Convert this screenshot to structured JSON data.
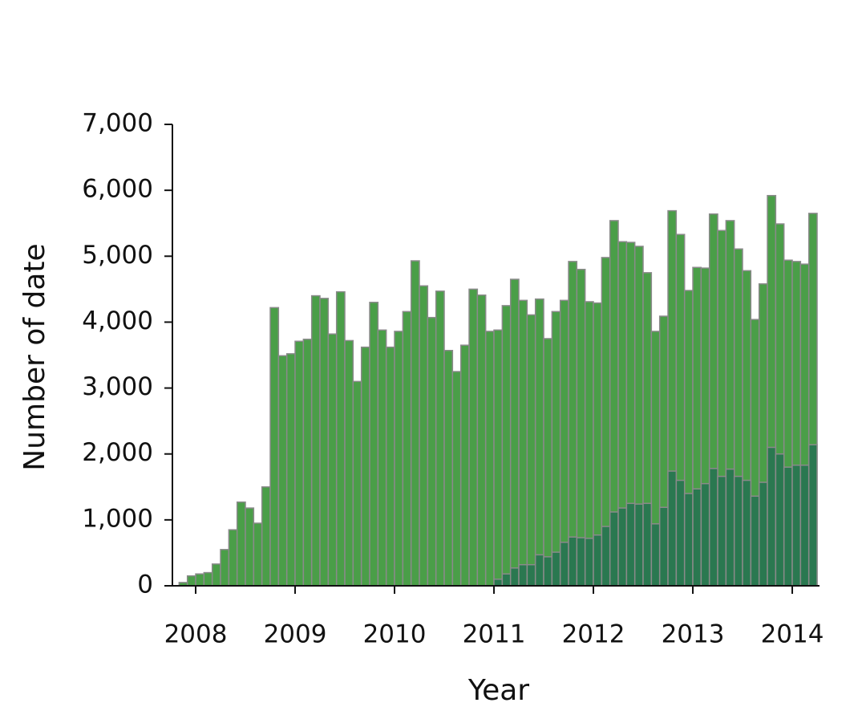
{
  "chart_data": {
    "type": "histogram",
    "xlabel": "Year",
    "ylabel": "Number of date",
    "bins": [
      2007.8333,
      2007.9167,
      2008,
      2008.0833,
      2008.1667,
      2008.25,
      2008.3333,
      2008.4167,
      2008.5,
      2008.5833,
      2008.6667,
      2008.75,
      2008.8333,
      2008.9167,
      2009,
      2009.0833,
      2009.1667,
      2009.25,
      2009.3333,
      2009.4167,
      2009.5,
      2009.5833,
      2009.6667,
      2009.75,
      2009.8333,
      2009.9167,
      2010,
      2010.0833,
      2010.1667,
      2010.25,
      2010.3333,
      2010.4167,
      2010.5,
      2010.5833,
      2010.6667,
      2010.75,
      2010.8333,
      2010.9167,
      2011,
      2011.0833,
      2011.1667,
      2011.25,
      2011.3333,
      2011.4167,
      2011.5,
      2011.5833,
      2011.6667,
      2011.75,
      2011.8333,
      2011.9167,
      2012,
      2012.0833,
      2012.1667,
      2012.25,
      2012.3333,
      2012.4167,
      2012.5,
      2012.5833,
      2012.6667,
      2012.75,
      2012.8333,
      2012.9167,
      2013,
      2013.0833,
      2013.1667,
      2013.25,
      2013.3333,
      2013.4167,
      2013.5,
      2013.5833,
      2013.6667,
      2013.75,
      2013.8333,
      2013.9167,
      2014,
      2014.0833,
      2014.1667,
      2014.25
    ],
    "series": [
      {
        "color": "#4a9e48",
        "values": [
          50,
          150,
          180,
          200,
          330,
          550,
          850,
          1270,
          1180,
          950,
          1500,
          4220,
          3490,
          3520,
          3710,
          3740,
          4400,
          4360,
          3820,
          4460,
          3720,
          3100,
          3620,
          4300,
          3880,
          3620,
          3860,
          4160,
          4930,
          4550,
          4070,
          4470,
          3570,
          3250,
          3650,
          4500,
          4410,
          3860,
          3880,
          4250,
          4650,
          4330,
          4110,
          4350,
          3750,
          4160,
          4330,
          4920,
          4800,
          4310,
          4290,
          4980,
          5540,
          5220,
          5210,
          5150,
          4750,
          3860,
          4090,
          5690,
          5330,
          4480,
          4830,
          4820,
          5640,
          5390,
          5540,
          5110,
          4780,
          4040,
          4580,
          5920,
          5490,
          4940,
          4920,
          4880,
          5650
        ]
      },
      {
        "color": "#2a7850",
        "values": [
          null,
          null,
          null,
          null,
          null,
          null,
          null,
          null,
          null,
          null,
          null,
          null,
          null,
          null,
          null,
          null,
          null,
          null,
          null,
          null,
          null,
          null,
          null,
          null,
          null,
          null,
          null,
          null,
          null,
          null,
          null,
          null,
          null,
          null,
          null,
          null,
          null,
          null,
          100,
          180,
          270,
          320,
          320,
          470,
          440,
          510,
          660,
          740,
          730,
          720,
          770,
          900,
          1120,
          1180,
          1250,
          1240,
          1250,
          940,
          1190,
          1740,
          1600,
          1400,
          1470,
          1550,
          1780,
          1660,
          1770,
          1660,
          1600,
          1360,
          1570,
          2100,
          2000,
          1800,
          1830,
          1830,
          2140
        ]
      }
    ],
    "bar_edge_color": "#8a8a8a",
    "xlim": [
      2007.766,
      2014.274
    ],
    "xticks": [
      2008,
      2009,
      2010,
      2011,
      2012,
      2013,
      2014
    ],
    "ylim": [
      0,
      7000
    ],
    "yticks": [
      0,
      {
        "value": 1000,
        "label": "1,000"
      },
      {
        "value": 2000,
        "label": "2,000"
      },
      {
        "value": 3000,
        "label": "3,000"
      },
      {
        "value": 4000,
        "label": "4,000"
      },
      {
        "value": 5000,
        "label": "5,000"
      },
      {
        "value": 6000,
        "label": "6,000"
      },
      {
        "value": 7000,
        "label": "7,000"
      }
    ]
  }
}
